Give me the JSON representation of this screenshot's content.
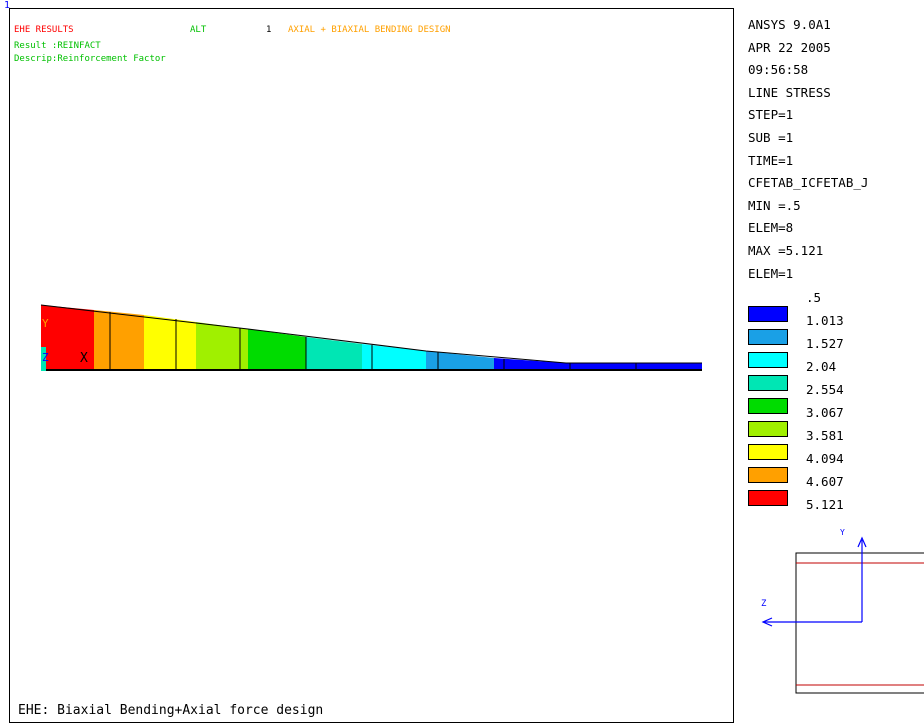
{
  "window_number": "1",
  "header": {
    "title": "EHE RESULTS",
    "alt_label": "ALT",
    "alt_number": "1",
    "alt_text": "AXIAL + BIAXIAL BENDING DESIGN",
    "result_line": "Result :REINFACT",
    "descrip_line": "Descrip:Reinforcement Factor"
  },
  "axis_labels": {
    "y": "Y",
    "z": "Z",
    "x": "X"
  },
  "caption": "EHE: Biaxial Bending+Axial force design",
  "info": [
    "ANSYS 9.0A1",
    "APR 22 2005",
    "09:56:58",
    "LINE STRESS",
    "STEP=1",
    "SUB =1",
    "TIME=1",
    "CFETAB_ICFETAB_J",
    "MIN =.5",
    "ELEM=8",
    "MAX =5.121",
    "ELEM=1"
  ],
  "legend": {
    "labels": [
      ".5",
      "1.013",
      "1.527",
      "2.04",
      "2.554",
      "3.067",
      "3.581",
      "4.094",
      "4.607",
      "5.121"
    ],
    "colors": [
      "#0000ff",
      "#1aa0e6",
      "#00ffff",
      "#00e6b4",
      "#00dc00",
      "#a0f000",
      "#ffff00",
      "#ffa000",
      "#ff0000"
    ]
  },
  "triad": {
    "y": "Y",
    "z": "Z"
  },
  "colors": {
    "title_red": "#ff0000",
    "result_green": "#00c000",
    "alt_orange": "#ffa000",
    "window_number_blue": "#0000ff",
    "triad_blue": "#0000ff",
    "section_red": "#c00000"
  }
}
